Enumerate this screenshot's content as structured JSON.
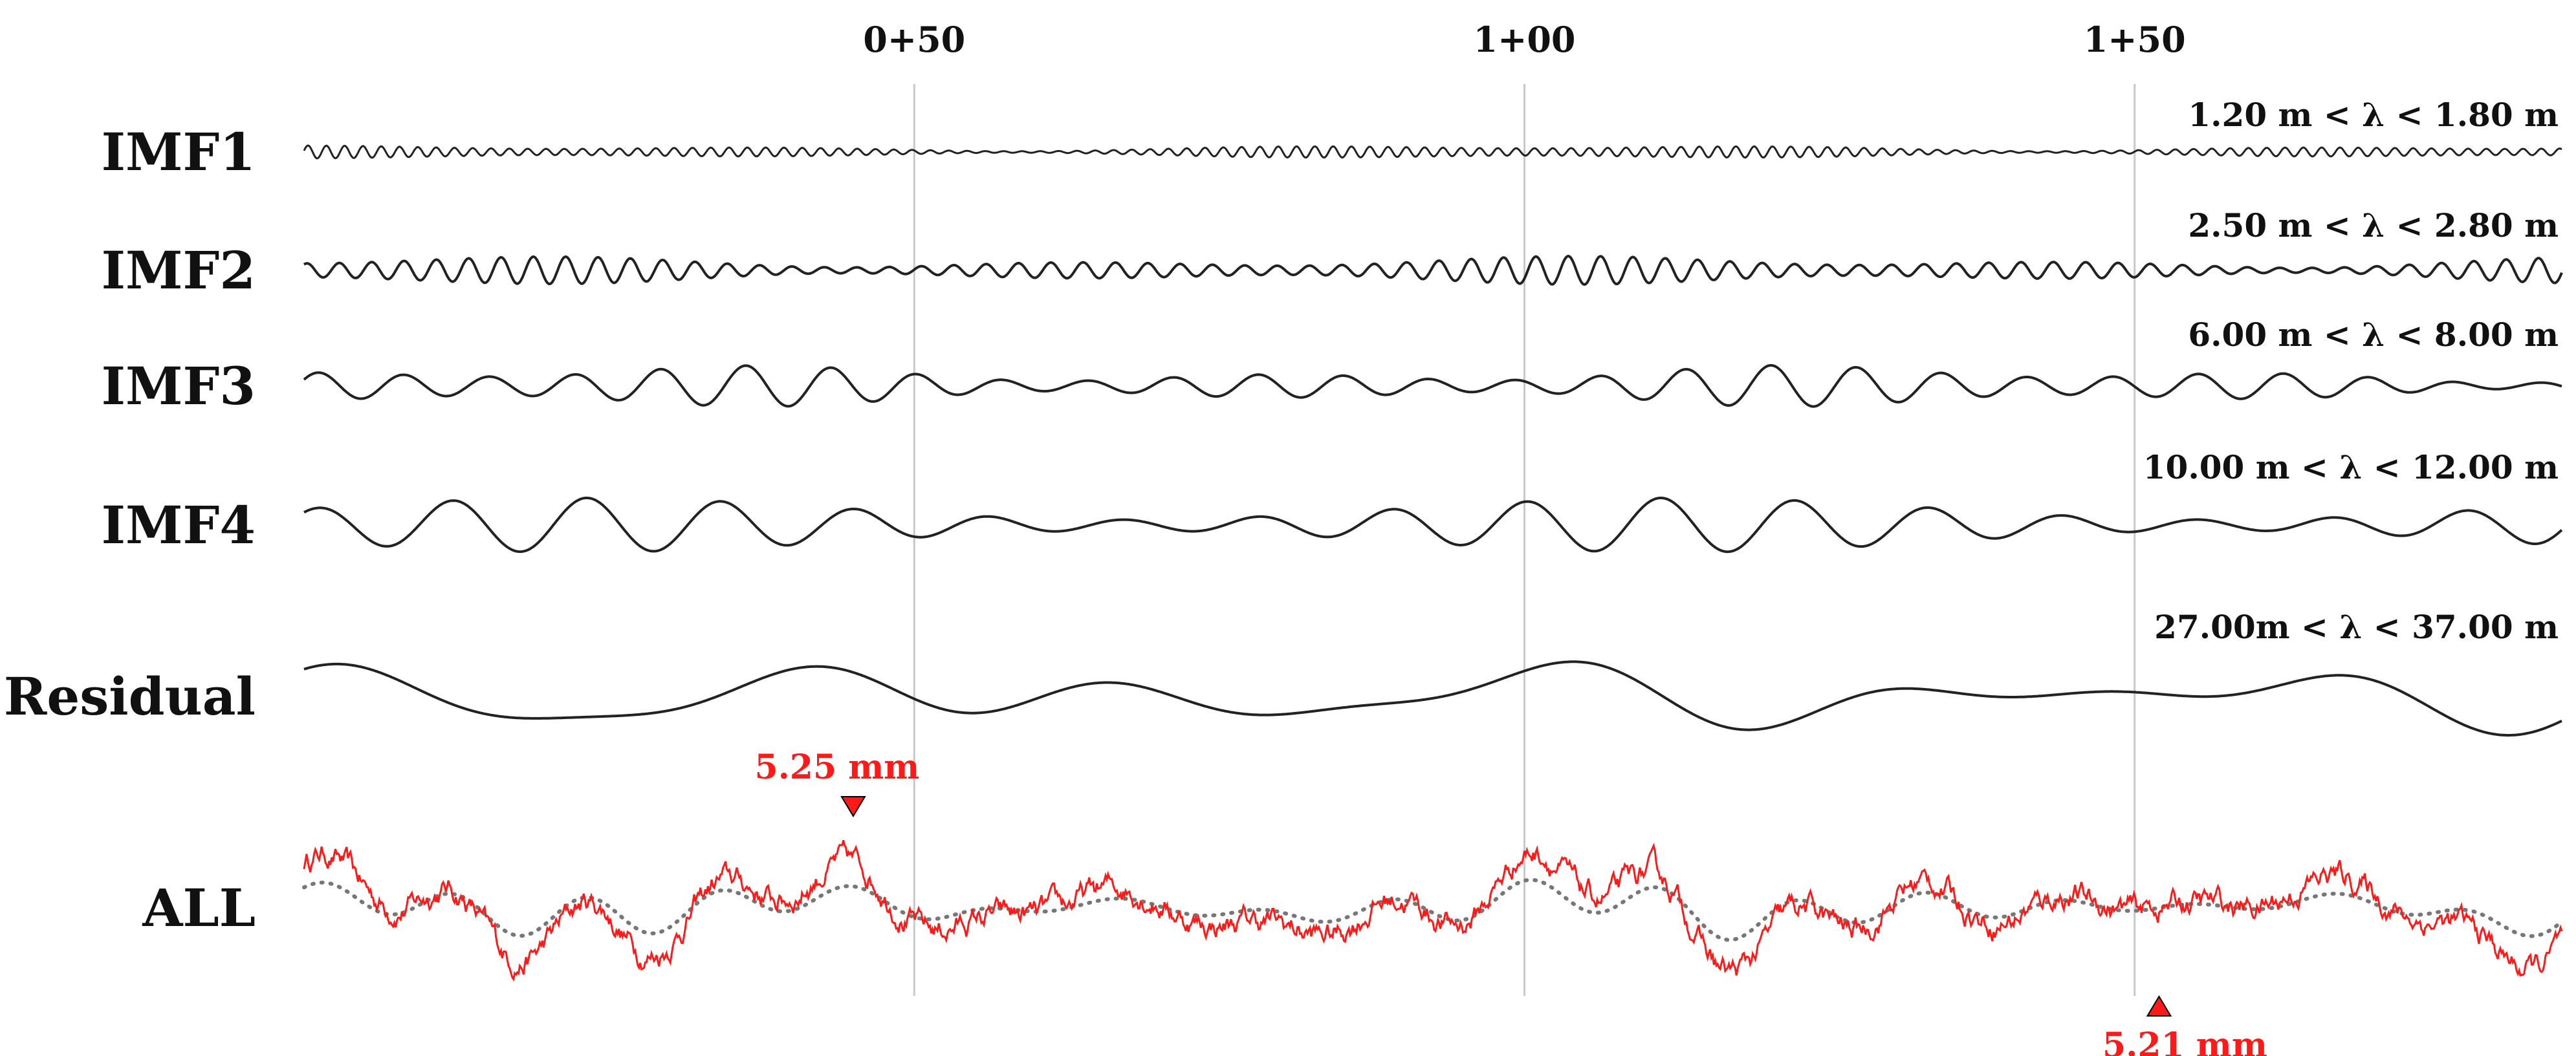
{
  "chart_data": {
    "type": "line",
    "x_ticks": [
      {
        "label": "0+50",
        "value": 50
      },
      {
        "label": "1+00",
        "value": 100
      },
      {
        "label": "1+50",
        "value": 150
      }
    ],
    "xlim": [
      0,
      185
    ],
    "grid": "vertical lines at ticks",
    "colors": {
      "components": "#222222",
      "all": "#ff1a1a",
      "dotted": "#777777",
      "grid": "#c8c8c8"
    },
    "rows": [
      {
        "label": "IMF1",
        "band": "1.20 m < λ < 1.80 m",
        "amplitude": 0.1,
        "wavelength": 1.5,
        "color": "#222222"
      },
      {
        "label": "IMF2",
        "band": "2.50 m < λ < 2.80 m",
        "amplitude": 0.25,
        "wavelength": 2.65,
        "color": "#222222"
      },
      {
        "label": "IMF3",
        "band": "6.00 m < λ < 8.00 m",
        "amplitude": 0.5,
        "wavelength": 7.0,
        "color": "#222222"
      },
      {
        "label": "IMF4",
        "band": "10.00 m < λ < 12.00 m",
        "amplitude": 1.0,
        "wavelength": 11.0,
        "color": "#222222"
      },
      {
        "label": "Residual",
        "band": "27.00m < λ < 37.00 m",
        "amplitude": 1.2,
        "wavelength": 32.0,
        "color": "#222222"
      },
      {
        "label": "ALL",
        "band": "",
        "amplitude": 5.25,
        "wavelength": 0,
        "color": "#ff1a1a"
      }
    ],
    "annotations": [
      {
        "text": "5.25 mm",
        "x": 45,
        "marker": "down-triangle"
      },
      {
        "text": "5.21 mm",
        "x": 152,
        "marker": "up-triangle"
      }
    ]
  }
}
